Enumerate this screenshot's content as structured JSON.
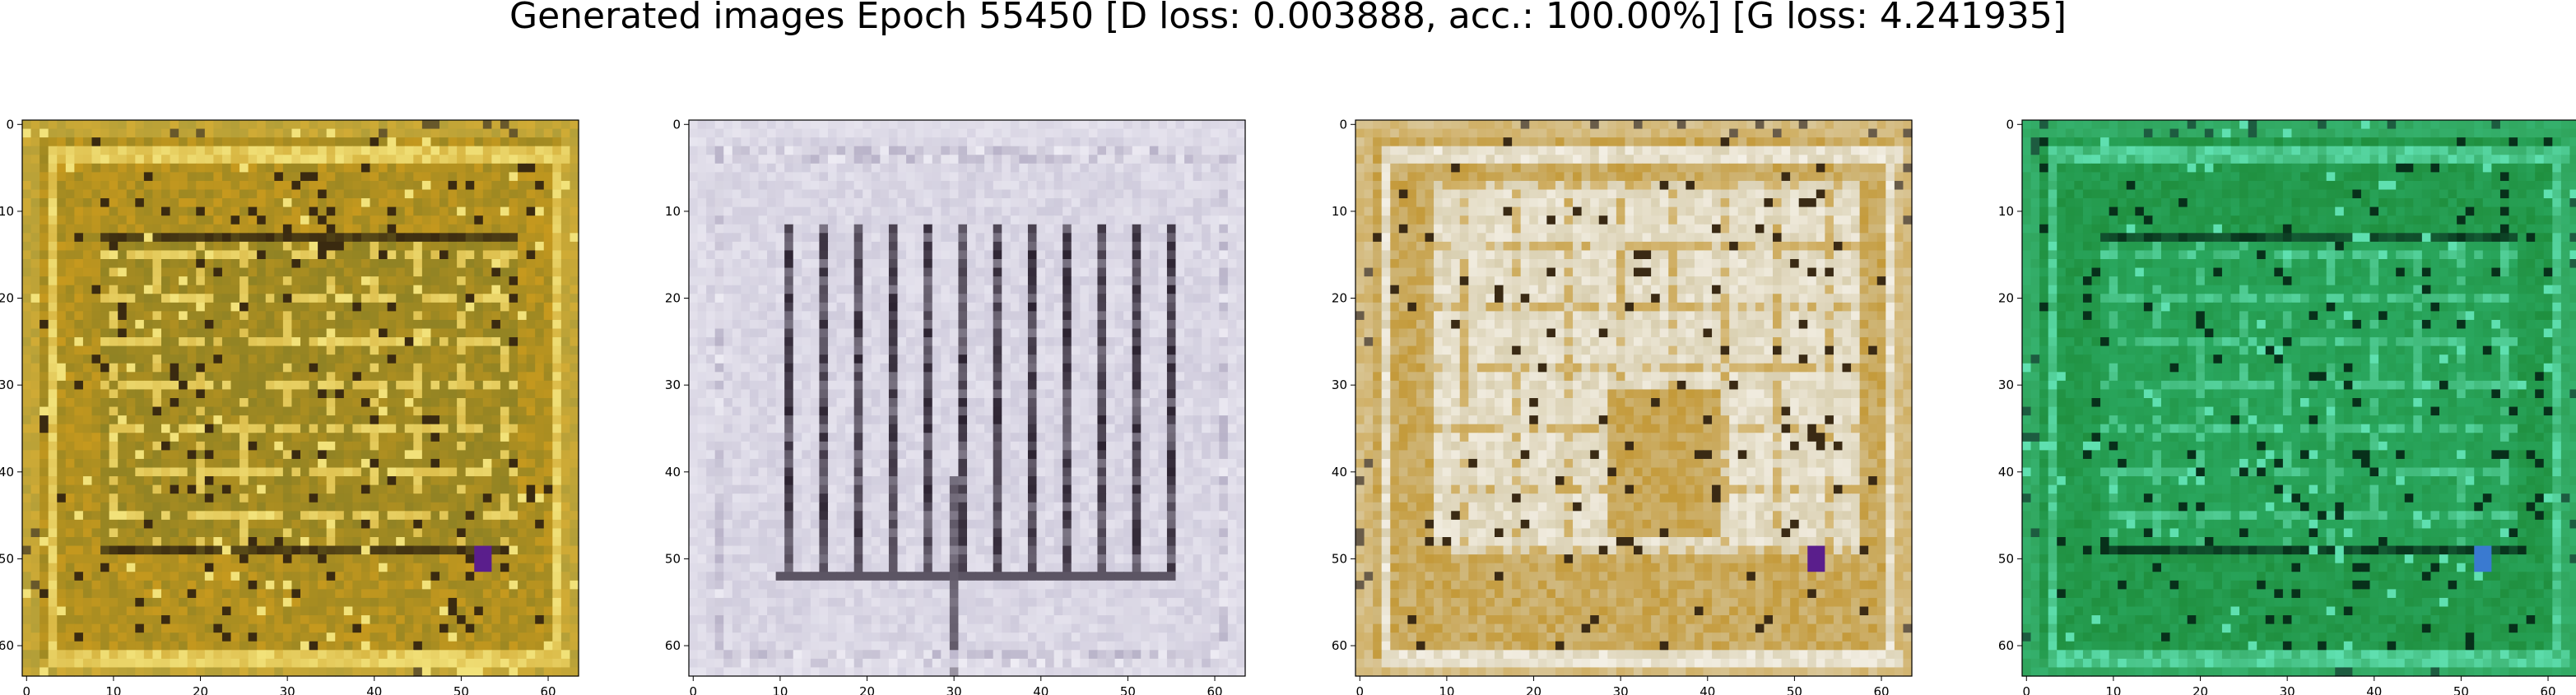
{
  "figure": {
    "title": "Generated images Epoch 55450 [D loss: 0.003888, acc.: 100.00%] [G loss: 4.241935]"
  },
  "chart_data": [
    {
      "type": "heatmap",
      "title": "",
      "xlabel": "",
      "ylabel": "",
      "xlim": [
        -0.5,
        63.5
      ],
      "ylim": [
        63.5,
        -0.5
      ],
      "xticks": [
        0,
        10,
        20,
        30,
        40,
        50,
        60
      ],
      "yticks": [
        0,
        10,
        20,
        30,
        40,
        50,
        60
      ],
      "grid": false,
      "palette": {
        "base": "#c89a1e",
        "mid": "#8f8224",
        "light": "#f2e27a",
        "dark": "#3a2a10",
        "accent": "#5a1e8c"
      },
      "pattern": "maze-frame"
    },
    {
      "type": "heatmap",
      "title": "",
      "xlabel": "",
      "ylabel": "",
      "xlim": [
        -0.5,
        63.5
      ],
      "ylim": [
        63.5,
        -0.5
      ],
      "xticks": [
        0,
        10,
        20,
        30,
        40,
        50,
        60
      ],
      "yticks": [
        0,
        10,
        20,
        30,
        40,
        50,
        60
      ],
      "grid": false,
      "palette": {
        "base": "#cfcbdc",
        "mid": "#b8b2c8",
        "light": "#eeecf4",
        "dark": "#2b2230",
        "accent": "#6e5a30"
      },
      "pattern": "vertical-bars"
    },
    {
      "type": "heatmap",
      "title": "",
      "xlabel": "",
      "ylabel": "",
      "xlim": [
        -0.5,
        63.5
      ],
      "ylim": [
        63.5,
        -0.5
      ],
      "xticks": [
        0,
        10,
        20,
        30,
        40,
        50,
        60
      ],
      "yticks": [
        0,
        10,
        20,
        30,
        40,
        50,
        60
      ],
      "grid": false,
      "palette": {
        "base": "#c49a3a",
        "mid": "#d9cfb0",
        "light": "#f4f0e6",
        "dark": "#3a2a14",
        "accent": "#5a1e8c"
      },
      "pattern": "maze-light-center"
    },
    {
      "type": "heatmap",
      "title": "",
      "xlabel": "",
      "ylabel": "",
      "xlim": [
        -0.5,
        63.5
      ],
      "ylim": [
        63.5,
        -0.5
      ],
      "xticks": [
        0,
        10,
        20,
        30,
        40,
        50,
        60
      ],
      "yticks": [
        0,
        10,
        20,
        30,
        40,
        50,
        60
      ],
      "grid": false,
      "palette": {
        "base": "#1f8f3e",
        "mid": "#2aa860",
        "light": "#5fe0b0",
        "dark": "#07301a",
        "accent": "#3a7ad0"
      },
      "pattern": "maze-frame"
    }
  ]
}
